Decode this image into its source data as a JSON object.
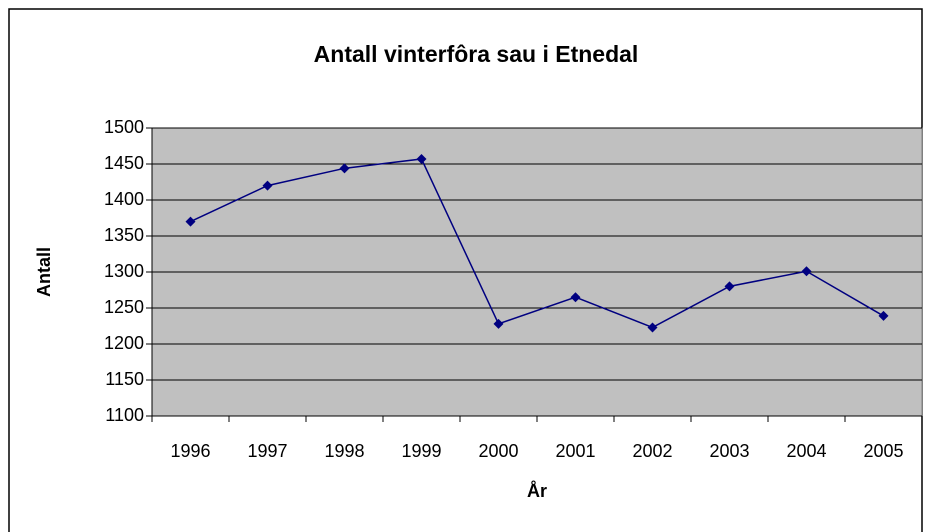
{
  "chart_data": {
    "type": "line",
    "title": "Antall vinterfôra sau i Etnedal",
    "x_label": "År",
    "y_label": "Antall",
    "categories": [
      "1996",
      "1997",
      "1998",
      "1999",
      "2000",
      "2001",
      "2002",
      "2003",
      "2004",
      "2005"
    ],
    "series": [
      {
        "name": "Antall",
        "color": "#000080",
        "values": [
          1370,
          1420,
          1444,
          1457,
          1228,
          1265,
          1223,
          1280,
          1301,
          1239
        ]
      }
    ],
    "ylim": [
      1100,
      1500
    ],
    "yticks": [
      1100,
      1150,
      1200,
      1250,
      1300,
      1350,
      1400,
      1450,
      1500
    ],
    "grid": true,
    "plot_background": "#c0c0c0"
  }
}
